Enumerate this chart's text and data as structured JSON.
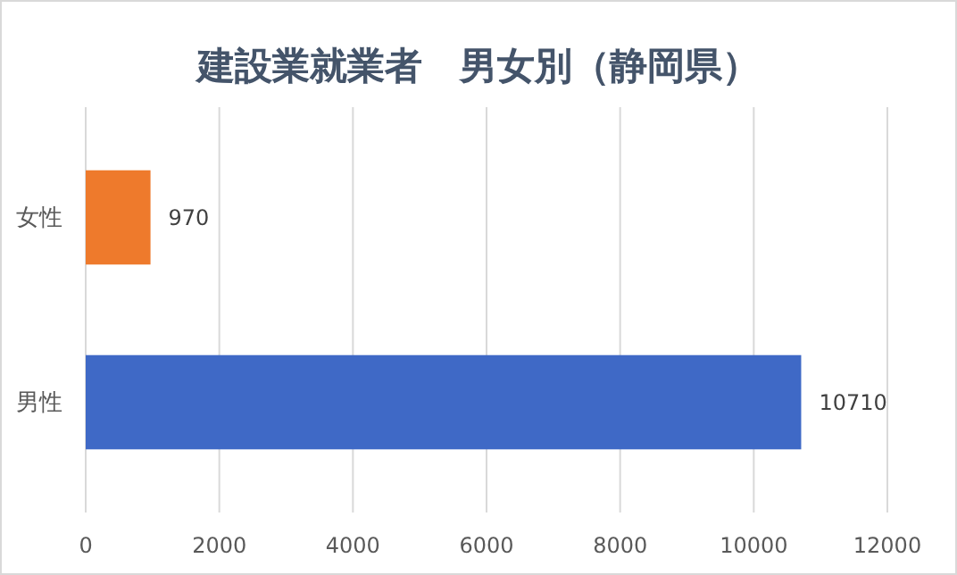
{
  "chart_data": {
    "type": "bar",
    "orientation": "horizontal",
    "title": "建設業就業者　男女別（静岡県）",
    "categories": [
      "女性",
      "男性"
    ],
    "values": [
      970,
      10710
    ],
    "colors": [
      "#ee7a2c",
      "#3f69c6"
    ],
    "xlim": [
      0,
      12000
    ],
    "xticks": [
      0,
      2000,
      4000,
      6000,
      8000,
      10000,
      12000
    ],
    "grid": "x",
    "data_labels": true
  }
}
